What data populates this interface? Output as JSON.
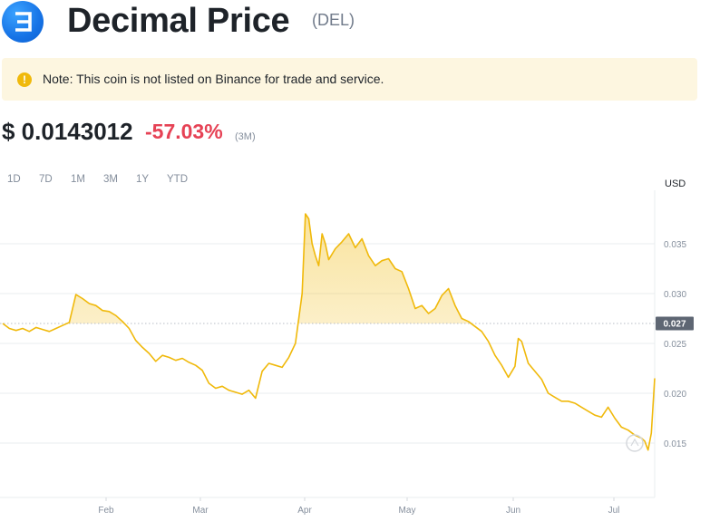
{
  "header": {
    "coin_name": "Decimal Price",
    "symbol": "(DEL)",
    "logo_icon": "decimal-coin-logo",
    "logo_glyph": "Ǝ"
  },
  "note": {
    "icon": "warning-icon",
    "glyph": "!",
    "text": "Note: This coin is not listed on Binance for trade and service."
  },
  "price": {
    "value": "$ 0.0143012",
    "change": "-57.03%",
    "period": "(3M)"
  },
  "ranges": {
    "options": [
      "1D",
      "7D",
      "1M",
      "3M",
      "1Y",
      "YTD"
    ],
    "active": "YTD"
  },
  "colors": {
    "line": "#f0b90b",
    "negative": "#e64255",
    "grid": "#eaecef",
    "axis_text": "#848e9c",
    "marker_bg": "#5e6673"
  },
  "chart_data": {
    "type": "area",
    "currency_label": "USD",
    "x_ticks": [
      "Feb",
      "Mar",
      "Apr",
      "May",
      "Jun",
      "Jul"
    ],
    "y_ticks": [
      0.015,
      0.02,
      0.025,
      0.03,
      0.035
    ],
    "y_tick_labels": [
      "0.015",
      "0.020",
      "0.025",
      "0.030",
      "0.035"
    ],
    "ylim": [
      0.0107,
      0.0392
    ],
    "current_marker": "0.027",
    "current_value": 0.027,
    "x_range_days": [
      0,
      196
    ],
    "series": [
      {
        "x": [
          0,
          2,
          4,
          6,
          8,
          10,
          12,
          14,
          16,
          18,
          20,
          22,
          24,
          26,
          28,
          30,
          32,
          34,
          36,
          38,
          40,
          42,
          44,
          46,
          48,
          50,
          52,
          54,
          56,
          58,
          60,
          62,
          64,
          66,
          68,
          70,
          72,
          74,
          76,
          78,
          80,
          82,
          84,
          86,
          88,
          89,
          90,
          91,
          92,
          93,
          94,
          95,
          96,
          97,
          98,
          100,
          102,
          104,
          106,
          108,
          110,
          112,
          114,
          116,
          118,
          120,
          122,
          124,
          126,
          128,
          130,
          132,
          134,
          136,
          138,
          140,
          142,
          144,
          146,
          148,
          150,
          152,
          154,
          155,
          156,
          158,
          160,
          162,
          164,
          166,
          168,
          170,
          172,
          174,
          176,
          178,
          180,
          182,
          184,
          186,
          188,
          190,
          192,
          193,
          194,
          195,
          196
        ],
        "y": [
          0.027,
          0.0265,
          0.0263,
          0.0265,
          0.0262,
          0.0266,
          0.0264,
          0.0262,
          0.0265,
          0.0268,
          0.0271,
          0.0299,
          0.0295,
          0.029,
          0.0288,
          0.0283,
          0.0282,
          0.0278,
          0.0272,
          0.0265,
          0.0253,
          0.0246,
          0.024,
          0.0232,
          0.0238,
          0.0236,
          0.0233,
          0.0235,
          0.0231,
          0.0228,
          0.0223,
          0.021,
          0.0205,
          0.0207,
          0.0203,
          0.0201,
          0.0199,
          0.0203,
          0.0195,
          0.0222,
          0.023,
          0.0228,
          0.0226,
          0.0236,
          0.025,
          0.0275,
          0.03,
          0.038,
          0.0375,
          0.035,
          0.0338,
          0.0328,
          0.036,
          0.035,
          0.0334,
          0.0345,
          0.0352,
          0.036,
          0.0346,
          0.0355,
          0.0338,
          0.0328,
          0.0333,
          0.0335,
          0.0325,
          0.0322,
          0.0305,
          0.0285,
          0.0288,
          0.028,
          0.0285,
          0.0298,
          0.0305,
          0.0288,
          0.0275,
          0.0272,
          0.0267,
          0.0262,
          0.0252,
          0.0238,
          0.0228,
          0.0216,
          0.0227,
          0.0255,
          0.0252,
          0.023,
          0.0222,
          0.0214,
          0.02,
          0.0196,
          0.0192,
          0.0192,
          0.019,
          0.0186,
          0.0182,
          0.0178,
          0.0176,
          0.0186,
          0.0175,
          0.0166,
          0.0163,
          0.0158,
          0.0155,
          0.0152,
          0.0143,
          0.016,
          0.0215
        ],
        "color": "#f0b90b"
      }
    ]
  }
}
